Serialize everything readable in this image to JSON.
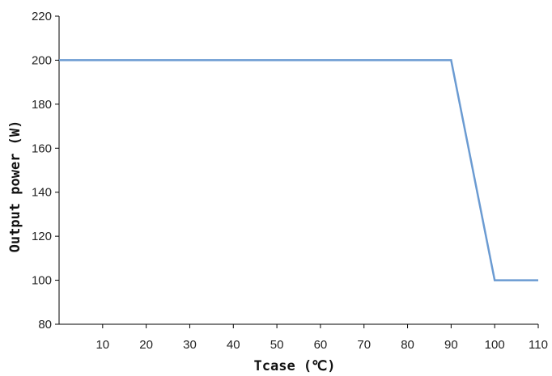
{
  "chart_data": {
    "type": "line",
    "title": "",
    "xlabel": "Tcase (℃)",
    "ylabel": "Output power (W)",
    "xlim": [
      0,
      110
    ],
    "ylim": [
      80,
      220
    ],
    "x_ticks": [
      "10",
      "20",
      "30",
      "40",
      "50",
      "60",
      "70",
      "80",
      "90",
      "100",
      "110"
    ],
    "y_ticks": [
      "80",
      "100",
      "120",
      "140",
      "160",
      "180",
      "200",
      "220"
    ],
    "grid": false,
    "series": [
      {
        "color": "#6b9bd2",
        "x": [
          0,
          90,
          100,
          110
        ],
        "y": [
          200,
          200,
          100,
          100
        ]
      }
    ]
  }
}
